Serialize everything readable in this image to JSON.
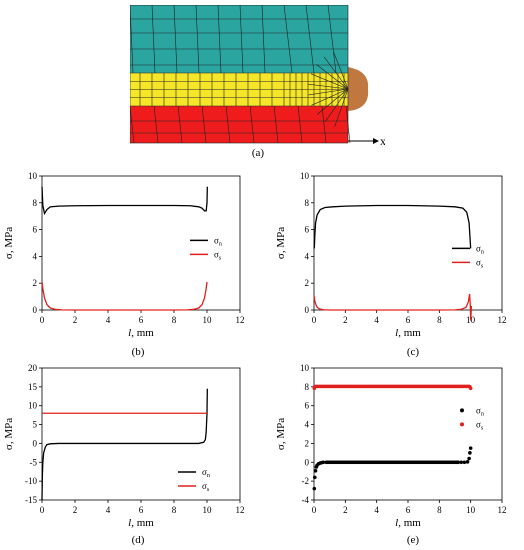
{
  "panel_labels": {
    "a": "(a)",
    "b": "(b)",
    "c": "(c)",
    "d": "(d)",
    "e": "(e)"
  },
  "mesh": {
    "axis_label": "x",
    "colors": {
      "top": "#2aa5a0",
      "middle": "#f5e62a",
      "bottom": "#ee1c1c",
      "bead": "#c07840"
    }
  },
  "colors": {
    "sigma_n": "#000000",
    "sigma_s": "#e0201c"
  },
  "chart_data": [
    {
      "id": "b",
      "type": "line",
      "xlabel_italic": "l",
      "xlabel_rest": ", mm",
      "ylabel": "σ, MPa",
      "xlim": [
        0,
        12
      ],
      "ylim": [
        0,
        10
      ],
      "xticks": [
        0,
        2,
        4,
        6,
        8,
        10,
        12
      ],
      "yticks": [
        0,
        2,
        4,
        6,
        8,
        10
      ],
      "legend": "right",
      "legend_labels": [
        "σ",
        "σ"
      ],
      "legend_subs": [
        "n",
        "s"
      ],
      "series": [
        {
          "key": "sigma_n",
          "x": [
            0,
            0.05,
            0.15,
            0.3,
            0.5,
            1,
            2,
            4,
            6,
            8,
            9,
            9.5,
            9.7,
            9.85,
            9.95,
            10,
            10.02
          ],
          "y": [
            9.2,
            7.8,
            7.2,
            7.5,
            7.7,
            7.75,
            7.78,
            7.8,
            7.8,
            7.8,
            7.78,
            7.7,
            7.6,
            7.4,
            7.4,
            8.0,
            9.2
          ]
        },
        {
          "key": "sigma_s",
          "x": [
            0,
            0.05,
            0.15,
            0.3,
            0.5,
            0.8,
            1.2,
            2,
            4,
            6,
            8,
            8.8,
            9.2,
            9.5,
            9.7,
            9.85,
            9.95,
            10
          ],
          "y": [
            2.1,
            1.6,
            0.9,
            0.4,
            0.15,
            0.05,
            0.01,
            0,
            0,
            0,
            0,
            0.01,
            0.05,
            0.15,
            0.4,
            0.9,
            1.6,
            2.1
          ]
        }
      ]
    },
    {
      "id": "c",
      "type": "line",
      "xlabel_italic": "l",
      "xlabel_rest": ", mm",
      "ylabel": "σ, MPa",
      "xlim": [
        0,
        12
      ],
      "ylim": [
        0,
        10
      ],
      "xticks": [
        0,
        2,
        4,
        6,
        8,
        10,
        12
      ],
      "yticks": [
        0,
        2,
        4,
        6,
        8,
        10
      ],
      "legend": "right",
      "legend_labels": [
        "σ",
        "σ"
      ],
      "legend_subs": [
        "n",
        "s"
      ],
      "series": [
        {
          "key": "sigma_n",
          "x": [
            0.02,
            0.05,
            0.1,
            0.2,
            0.4,
            0.7,
            1.2,
            2,
            4,
            6,
            8,
            9,
            9.5,
            9.75,
            9.9,
            10
          ],
          "y": [
            4.6,
            5.5,
            6.5,
            7.1,
            7.5,
            7.65,
            7.7,
            7.75,
            7.8,
            7.8,
            7.75,
            7.7,
            7.6,
            7.3,
            6.5,
            4.6
          ]
        },
        {
          "key": "sigma_s",
          "x": [
            0,
            0.05,
            0.12,
            0.2,
            0.35,
            0.6,
            1,
            2,
            4,
            6,
            8,
            9,
            9.4,
            9.7,
            9.85,
            9.93,
            9.97,
            10.0,
            10.02,
            10.05
          ],
          "y": [
            1.1,
            0.7,
            0.4,
            0.2,
            0.08,
            0.02,
            0,
            0,
            0,
            0,
            0,
            0.01,
            0.05,
            0.2,
            0.6,
            1.2,
            0.5,
            -0.8,
            -0.4,
            0.3
          ]
        }
      ]
    },
    {
      "id": "d",
      "type": "line",
      "xlabel_italic": "l",
      "xlabel_rest": ", mm",
      "ylabel": "σ, MPa",
      "xlim": [
        0,
        12
      ],
      "ylim": [
        -15,
        20
      ],
      "xticks": [
        0,
        2,
        4,
        6,
        8,
        10,
        12
      ],
      "yticks": [
        -15,
        -10,
        -5,
        0,
        5,
        10,
        15,
        20
      ],
      "legend": "bottom-right",
      "legend_labels": [
        "σ",
        "σ"
      ],
      "legend_subs": [
        "n",
        "s"
      ],
      "series": [
        {
          "key": "sigma_n",
          "x": [
            0,
            0.02,
            0.05,
            0.1,
            0.2,
            0.3,
            0.5,
            1,
            4,
            8,
            9.5,
            9.8,
            9.9,
            9.95,
            10.0,
            10.02
          ],
          "y": [
            -15,
            -9,
            -5,
            -2.5,
            -1,
            -0.3,
            -0.1,
            0,
            0,
            0,
            0,
            0.3,
            1,
            3,
            8,
            14.5
          ]
        },
        {
          "key": "sigma_s",
          "x": [
            0,
            0.1,
            2,
            4,
            6,
            8,
            9.9,
            10
          ],
          "y": [
            8,
            8,
            8,
            8,
            8,
            8,
            8,
            8
          ]
        }
      ]
    },
    {
      "id": "e",
      "type": "scatter",
      "xlabel_italic": "l",
      "xlabel_rest": ", mm",
      "ylabel": "σ, MPa",
      "xlim": [
        0,
        12
      ],
      "ylim": [
        -4,
        10
      ],
      "xticks": [
        0,
        2,
        4,
        6,
        8,
        10,
        12
      ],
      "yticks": [
        -4,
        -2,
        0,
        2,
        4,
        6,
        8,
        10
      ],
      "legend": "right",
      "legend_labels": [
        "σ",
        "σ"
      ],
      "legend_subs": [
        "n",
        "s"
      ],
      "series": [
        {
          "key": "sigma_n",
          "x": [
            0.02,
            0.05,
            0.1,
            0.15,
            0.2,
            0.3,
            0.4,
            0.5,
            0.6,
            0.8,
            9.2,
            9.4,
            9.6,
            9.8,
            9.9,
            9.95,
            10.0
          ],
          "y": [
            -2.8,
            -1.6,
            -0.9,
            -0.5,
            -0.3,
            -0.15,
            -0.08,
            -0.03,
            0,
            0,
            0,
            0,
            0,
            0.05,
            0.4,
            1.0,
            1.5
          ],
          "fill_from": 0.8,
          "fill_to": 9.2,
          "fill_y": 0
        },
        {
          "key": "sigma_s",
          "x": [
            0.02,
            0.05,
            9.95,
            10.0
          ],
          "y": [
            7.85,
            8.0,
            8.0,
            7.85
          ],
          "fill_from": 0.1,
          "fill_to": 9.9,
          "fill_y": 8.05
        }
      ]
    }
  ]
}
